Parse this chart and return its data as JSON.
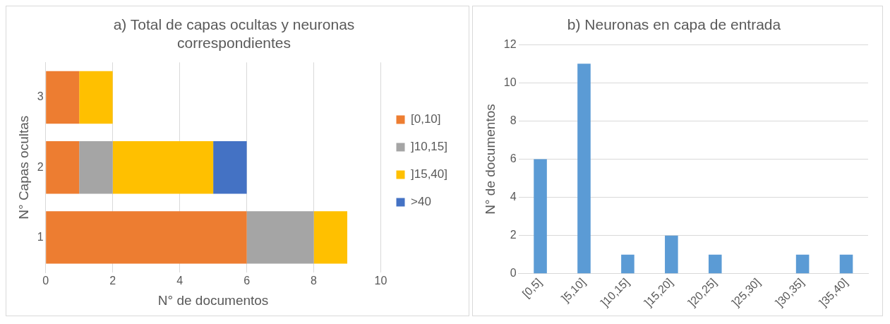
{
  "chart_data": [
    {
      "type": "bar",
      "title": "a) Total de capas ocultas y neuronas correspondientes",
      "xlabel": "N° de documentos",
      "ylabel": "N° Capas ocultas",
      "orientation": "horizontal",
      "stacked": true,
      "categories": [
        "3",
        "2",
        "1"
      ],
      "series": [
        {
          "name": "[0,10]",
          "color": "#ed7d31",
          "values": [
            1,
            1,
            6
          ]
        },
        {
          "name": "]10,15]",
          "color": "#a5a5a5",
          "values": [
            0,
            1,
            2
          ]
        },
        {
          "name": "]15,40]",
          "color": "#ffc000",
          "values": [
            1,
            3,
            1
          ]
        },
        {
          "name": ">40",
          "color": "#4472c4",
          "values": [
            0,
            1,
            0
          ]
        }
      ],
      "xlim": [
        0,
        10
      ],
      "xticks": [
        0,
        2,
        4,
        6,
        8,
        10
      ],
      "grid": "x",
      "legend": "right"
    },
    {
      "type": "bar",
      "title": "b) Neuronas en capa de entrada",
      "ylabel": "N° de documentos",
      "categories": [
        "[0,5]",
        "]5,10]",
        "]10,15]",
        "]15,20]",
        "]20,25]",
        "]25,30]",
        "]30,35]",
        "]35,40]"
      ],
      "values": [
        6,
        11,
        1,
        2,
        1,
        0,
        1,
        1
      ],
      "color": "#5b9bd5",
      "ylim": [
        0,
        12
      ],
      "yticks": [
        0,
        2,
        4,
        6,
        8,
        10,
        12
      ],
      "grid": "y"
    }
  ]
}
